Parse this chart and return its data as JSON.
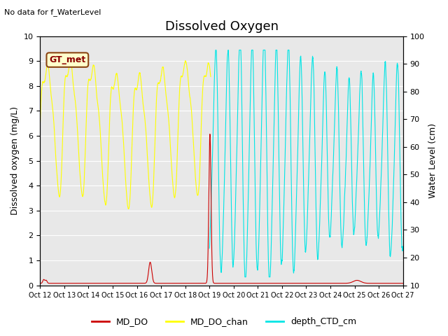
{
  "title": "Dissolved Oxygen",
  "top_left_text": "No data for f_WaterLevel",
  "annotation_text": "GT_met",
  "ylabel_left": "Dissolved oxygen (mg/L)",
  "ylabel_right": "Water Level (cm)",
  "ylim_left": [
    0.0,
    10.0
  ],
  "ylim_right": [
    10,
    100
  ],
  "yticks_left": [
    0.0,
    1.0,
    2.0,
    3.0,
    4.0,
    5.0,
    6.0,
    7.0,
    8.0,
    9.0,
    10.0
  ],
  "yticks_right": [
    10,
    20,
    30,
    40,
    50,
    60,
    70,
    80,
    90,
    100
  ],
  "xtick_labels": [
    "Oct 12",
    "Oct 13",
    "Oct 14",
    "Oct 15",
    "Oct 16",
    "Oct 17",
    "Oct 18",
    "Oct 19",
    "Oct 20",
    "Oct 21",
    "Oct 22",
    "Oct 23",
    "Oct 24",
    "Oct 25",
    "Oct 26",
    "Oct 27"
  ],
  "color_MD_DO": "#cc0000",
  "color_MD_DO_chan": "#ffff00",
  "color_depth_CTD_cm": "#00e5e5",
  "bg_color": "#e8e8e8",
  "legend_labels": [
    "MD_DO",
    "MD_DO_chan",
    "depth_CTD_cm"
  ],
  "title_fontsize": 13,
  "label_fontsize": 9,
  "tick_fontsize": 8
}
